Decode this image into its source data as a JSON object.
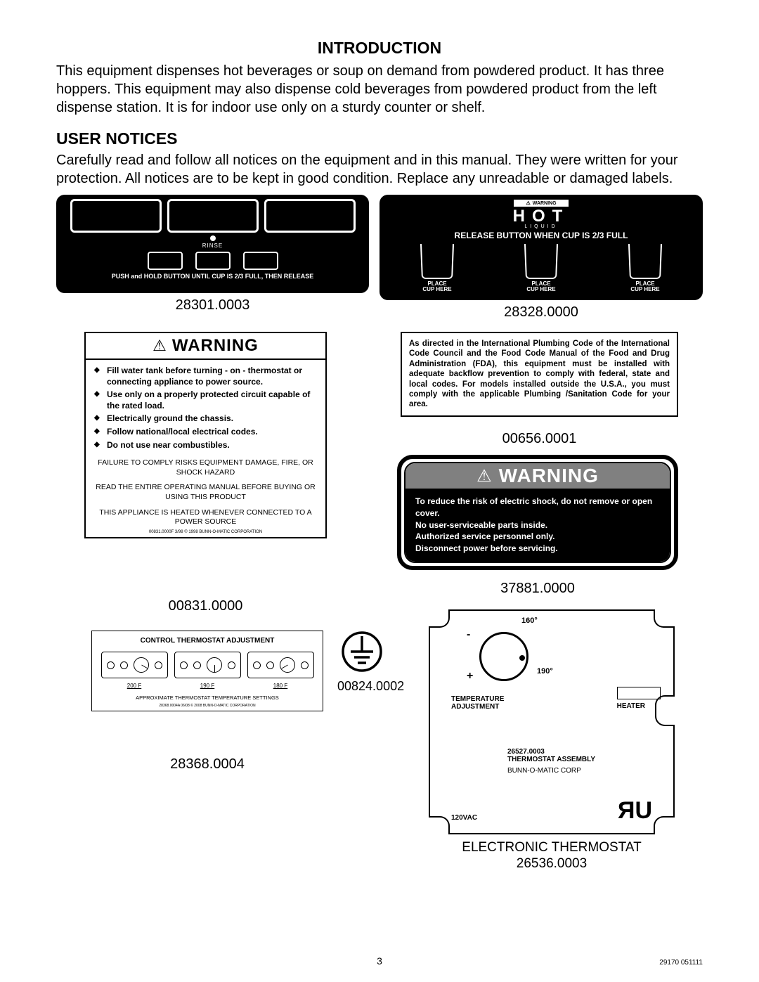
{
  "intro": {
    "title": "INTRODUCTION",
    "body": "This equipment dispenses hot beverages or soup on demand from powdered product.  It has three hoppers.  This equipment may also dispense cold beverages from powdered product from the left dispense station.  It is for indoor use only on a sturdy counter or shelf."
  },
  "notices": {
    "title": "USER NOTICES",
    "body": "Carefully read and follow all notices on the equipment and in this manual.  They were written for your protection.  All notices are to be kept in good condition.  Replace any unreadable or damaged labels."
  },
  "labels": {
    "panel_28301": {
      "part_no": "28301.0003",
      "rinse": "RINSE",
      "instruction": "PUSH and HOLD BUTTON UNTIL CUP IS 2/3 FULL, THEN RELEASE"
    },
    "panel_28328": {
      "part_no": "28328.0000",
      "warning": "WARNING",
      "hot": "HOT",
      "liquid": "LIQUID",
      "release": "RELEASE BUTTON WHEN CUP IS 2/3 FULL",
      "place_l1": "PLACE",
      "place_l2": "CUP HERE"
    },
    "panel_00831": {
      "part_no": "00831.0000",
      "header": "WARNING",
      "bullets": [
        "Fill water tank before turning - on - thermostat or connecting appliance to power source.",
        "Use only on a properly protected circuit capable of the rated load.",
        "Electrically ground the chassis.",
        "Follow national/local electrical codes.",
        "Do not use near combustibles."
      ],
      "failure": "FAILURE TO COMPLY RISKS EQUIPMENT DAMAGE, FIRE, OR SHOCK HAZARD",
      "read": "READ THE ENTIRE OPERATING MANUAL BEFORE BUYING OR USING THIS PRODUCT",
      "heated": "THIS APPLIANCE IS HEATED WHENEVER CONNECTED TO A POWER SOURCE",
      "fine": "00831.0000F  3/98  © 1998 BUNN-O-MATIC CORPORATION"
    },
    "panel_00656": {
      "part_no": "00656.0001",
      "text": "As directed in the International Plumbing Code of the International Code Council and the Food Code Manual of the Food and Drug Administration (FDA), this equipment must be installed with adequate backflow prevention to comply with federal, state and local codes. For models installed outside the U.S.A., you must comply with the applicable Plumbing /Sanitation Code for your area."
    },
    "panel_37881": {
      "part_no": "37881.0000",
      "header": "WARNING",
      "l1": "To reduce the risk of electric shock, do not remove or open cover.",
      "l2": "No user-serviceable parts inside.",
      "l3": "Authorized service personnel only.",
      "l4": "Disconnect power before servicing."
    },
    "panel_28368": {
      "part_no": "28368.0004",
      "title": "CONTROL THERMOSTAT ADJUSTMENT",
      "temps": [
        "200 F",
        "190 F",
        "180 F"
      ],
      "angles": [
        -60,
        0,
        60
      ],
      "sub": "APPROXIMATE THERMOSTAT TEMPERATURE SETTINGS",
      "fine": "28368.0004A 06/08  © 2008 BUNN-O-MATIC CORPORATION"
    },
    "ground": {
      "part_no": "00824.0002"
    },
    "ethermo": {
      "t160": "160°",
      "t190": "190°",
      "temp_lbl": "TEMPERATURE\nADJUSTMENT",
      "heater": "HEATER",
      "assy_no": "26527.0003",
      "assy_txt": "THERMOSTAT ASSEMBLY",
      "corp": "BUNN-O-MATIC CORP",
      "vac": "120VAC",
      "ru": "ЯU",
      "caption": "ELECTRONIC THERMOSTAT",
      "part_no": "26536.0003"
    }
  },
  "page": {
    "num": "3",
    "docid": "29170 051111"
  },
  "colors": {
    "black": "#000000",
    "white": "#ffffff",
    "gray": "#808080"
  }
}
